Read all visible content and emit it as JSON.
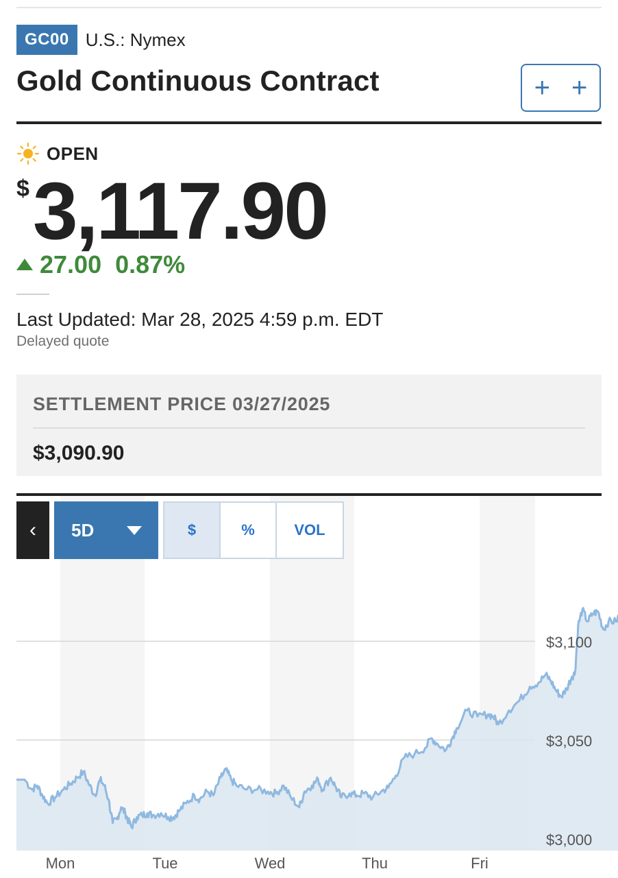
{
  "header": {
    "ticker": "GC00",
    "exchange": "U.S.: Nymex",
    "title": "Gold Continuous Contract",
    "watch_button": "+ +"
  },
  "quote": {
    "status": "OPEN",
    "currency_symbol": "$",
    "price": "3,117.90",
    "change": "27.00",
    "change_percent": "0.87%",
    "last_updated": "Last Updated: Mar 28, 2025 4:59 p.m. EDT",
    "delayed": "Delayed quote"
  },
  "settlement": {
    "label": "SETTLEMENT PRICE 03/27/2025",
    "value": "$3,090.90"
  },
  "chart_controls": {
    "back": "‹",
    "range": "5D",
    "modes": [
      "$",
      "%",
      "VOL"
    ],
    "active_mode": "$"
  },
  "colors": {
    "brand": "#3a77b0",
    "up": "#3f8a3a",
    "line": "#8fb9e0",
    "fill": "#dbe6f0"
  },
  "chart_data": {
    "type": "area",
    "title": "",
    "xlabel": "",
    "ylabel": "",
    "x_ticks": [
      "Mon",
      "Tue",
      "Wed",
      "Thu",
      "Fri"
    ],
    "y_ticks": [
      "$3,000",
      "$3,050",
      "$3,100"
    ],
    "y_tick_values": [
      3000,
      3050,
      3100
    ],
    "ylim": [
      3000,
      3118
    ],
    "grid": true,
    "y_axis_side": "right",
    "series": [
      {
        "values": [
          [
            0.0,
            3030
          ],
          [
            0.08,
            3030
          ],
          [
            0.15,
            3025
          ],
          [
            0.2,
            3027
          ],
          [
            0.25,
            3022
          ],
          [
            0.3,
            3018
          ],
          [
            0.37,
            3021
          ],
          [
            0.45,
            3025
          ],
          [
            0.52,
            3028
          ],
          [
            0.58,
            3031
          ],
          [
            0.64,
            3034
          ],
          [
            0.7,
            3027
          ],
          [
            0.75,
            3022
          ],
          [
            0.8,
            3030
          ],
          [
            0.84,
            3027
          ],
          [
            0.88,
            3020
          ],
          [
            0.92,
            3008
          ],
          [
            0.96,
            3010
          ],
          [
            1.0,
            3016
          ],
          [
            1.04,
            3013
          ],
          [
            1.07,
            3009
          ],
          [
            1.1,
            3006
          ],
          [
            1.15,
            3011
          ],
          [
            1.2,
            3012
          ],
          [
            1.25,
            3013
          ],
          [
            1.3,
            3012
          ],
          [
            1.38,
            3013
          ],
          [
            1.45,
            3011
          ],
          [
            1.5,
            3011
          ],
          [
            1.55,
            3014
          ],
          [
            1.62,
            3018
          ],
          [
            1.7,
            3022
          ],
          [
            1.75,
            3020
          ],
          [
            1.82,
            3024
          ],
          [
            1.88,
            3022
          ],
          [
            1.95,
            3031
          ],
          [
            2.0,
            3035
          ],
          [
            2.05,
            3030
          ],
          [
            2.1,
            3027
          ],
          [
            2.2,
            3025
          ],
          [
            2.3,
            3025
          ],
          [
            2.4,
            3024
          ],
          [
            2.48,
            3023
          ],
          [
            2.55,
            3027
          ],
          [
            2.62,
            3021
          ],
          [
            2.7,
            3016
          ],
          [
            2.75,
            3024
          ],
          [
            2.82,
            3027
          ],
          [
            2.88,
            3030
          ],
          [
            2.92,
            3025
          ],
          [
            3.0,
            3031
          ],
          [
            3.05,
            3026
          ],
          [
            3.1,
            3021
          ],
          [
            3.18,
            3023
          ],
          [
            3.25,
            3022
          ],
          [
            3.32,
            3023
          ],
          [
            3.4,
            3021
          ],
          [
            3.48,
            3024
          ],
          [
            3.55,
            3026
          ],
          [
            3.62,
            3032
          ],
          [
            3.7,
            3041
          ],
          [
            3.8,
            3043
          ],
          [
            3.9,
            3046
          ],
          [
            3.96,
            3051
          ],
          [
            4.02,
            3048
          ],
          [
            4.1,
            3045
          ],
          [
            4.15,
            3050
          ],
          [
            4.2,
            3056
          ],
          [
            4.3,
            3065
          ],
          [
            4.4,
            3062
          ],
          [
            4.5,
            3063
          ],
          [
            4.55,
            3062
          ],
          [
            4.6,
            3058
          ],
          [
            4.7,
            3065
          ],
          [
            4.8,
            3070
          ],
          [
            4.9,
            3077
          ],
          [
            4.98,
            3079
          ],
          [
            5.05,
            3083
          ],
          [
            5.1,
            3080
          ],
          [
            5.15,
            3075
          ],
          [
            5.2,
            3072
          ],
          [
            5.25,
            3076
          ],
          [
            5.3,
            3082
          ],
          [
            5.33,
            3084
          ],
          [
            5.36,
            3108
          ],
          [
            5.4,
            3116
          ],
          [
            5.45,
            3110
          ],
          [
            5.5,
            3114
          ],
          [
            5.55,
            3115
          ],
          [
            5.6,
            3106
          ],
          [
            5.65,
            3110
          ],
          [
            5.72,
            3110
          ],
          [
            5.78,
            3116
          ],
          [
            5.82,
            3118
          ]
        ]
      }
    ]
  }
}
